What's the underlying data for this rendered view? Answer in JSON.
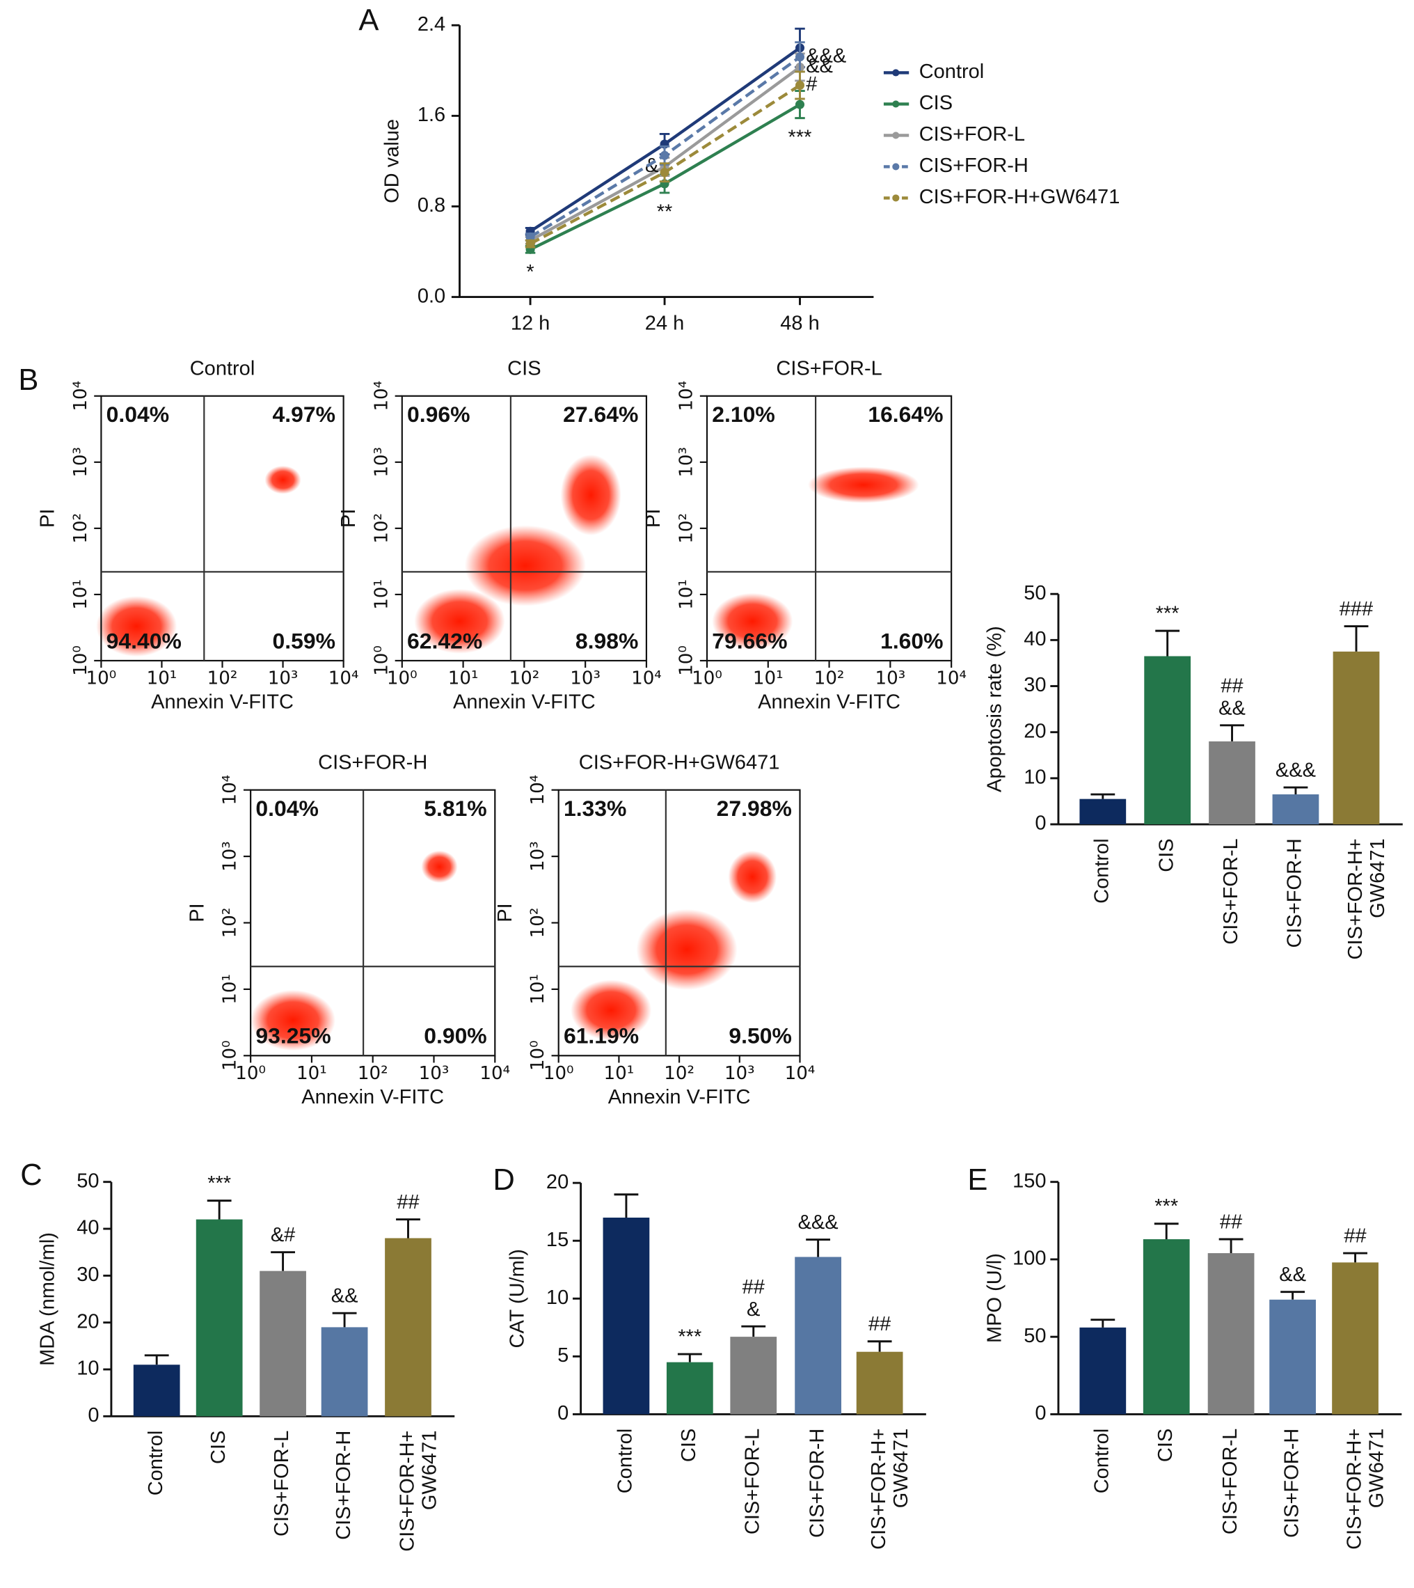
{
  "chart_data": [
    {
      "type": "line",
      "panel_label": "A",
      "ylabel": "OD value",
      "categories": [
        "12 h",
        "24 h",
        "48 h"
      ],
      "ylim": [
        0,
        2.4
      ],
      "yticks": [
        {
          "value": 0,
          "label": "0.0"
        },
        0.8,
        1.6,
        2.4
      ],
      "series": [
        {
          "name": "Control",
          "color": "#1f3a78",
          "dashed": false,
          "values": [
            0.58,
            1.35,
            2.2
          ],
          "errors": [
            0.03,
            0.09,
            0.17
          ],
          "significance": [
            null,
            null,
            null
          ]
        },
        {
          "name": "CIS",
          "color": "#2e8050",
          "dashed": false,
          "values": [
            0.42,
            1.0,
            1.7
          ],
          "errors": [
            0.03,
            0.08,
            0.12
          ],
          "significance": [
            "*",
            "**",
            "***"
          ]
        },
        {
          "name": "CIS+FOR-L",
          "color": "#9a9a9a",
          "dashed": false,
          "values": [
            0.5,
            1.15,
            2.03
          ],
          "errors": [
            0.03,
            0.08,
            0.12
          ],
          "significance": [
            null,
            "&",
            "&&"
          ]
        },
        {
          "name": "CIS+FOR-H",
          "color": "#5a79a8",
          "dashed": true,
          "values": [
            0.53,
            1.25,
            2.12
          ],
          "errors": [
            0.03,
            0.08,
            0.13
          ],
          "significance": [
            null,
            null,
            "&&&"
          ]
        },
        {
          "name": "CIS+FOR-H+GW6471",
          "color": "#9c8a3a",
          "dashed": true,
          "values": [
            0.47,
            1.1,
            1.87
          ],
          "errors": [
            0.03,
            0.08,
            0.12
          ],
          "significance": [
            null,
            null,
            "#"
          ]
        }
      ]
    },
    {
      "type": "flow",
      "panel_label": "B",
      "title": "Control",
      "xlabel": "Annexin V-FITC",
      "ylabel": "PI",
      "log_scale": true,
      "xlim": [
        1,
        10000
      ],
      "ylim": [
        1,
        10000
      ],
      "xticks": [
        {
          "value": 1,
          "label": "10⁰"
        },
        {
          "value": 10,
          "label": "10¹"
        },
        {
          "value": 100,
          "label": "10²"
        },
        {
          "value": 1000,
          "label": "10³"
        },
        {
          "value": 10000,
          "label": "10⁴"
        }
      ],
      "yticks": [
        {
          "value": 1,
          "label": "10⁰"
        },
        {
          "value": 10,
          "label": "10¹"
        },
        {
          "value": 100,
          "label": "10²"
        },
        {
          "value": 1000,
          "label": "10³"
        },
        {
          "value": 10000,
          "label": "10⁴"
        }
      ],
      "gate_x": 50,
      "gate_y": 22,
      "values": [
        0.04,
        4.97,
        94.4,
        0.59
      ],
      "value_labels": [
        "0.04%",
        "4.97%",
        "94.40%",
        "0.59%"
      ]
    },
    {
      "type": "flow",
      "title": "CIS",
      "xlabel": "Annexin V-FITC",
      "ylabel": "PI",
      "log_scale": true,
      "xlim": [
        1,
        10000
      ],
      "ylim": [
        1,
        10000
      ],
      "xticks": [
        {
          "value": 1,
          "label": "10⁰"
        },
        {
          "value": 10,
          "label": "10¹"
        },
        {
          "value": 100,
          "label": "10²"
        },
        {
          "value": 1000,
          "label": "10³"
        },
        {
          "value": 10000,
          "label": "10⁴"
        }
      ],
      "yticks": [
        {
          "value": 1,
          "label": "10⁰"
        },
        {
          "value": 10,
          "label": "10¹"
        },
        {
          "value": 100,
          "label": "10²"
        },
        {
          "value": 1000,
          "label": "10³"
        },
        {
          "value": 10000,
          "label": "10⁴"
        }
      ],
      "gate_x": 60,
      "gate_y": 22,
      "values": [
        0.96,
        27.64,
        62.42,
        8.98
      ],
      "value_labels": [
        "0.96%",
        "27.64%",
        "62.42%",
        "8.98%"
      ]
    },
    {
      "type": "flow",
      "title": "CIS+FOR-L",
      "xlabel": "Annexin V-FITC",
      "ylabel": "PI",
      "log_scale": true,
      "xlim": [
        1,
        10000
      ],
      "ylim": [
        1,
        10000
      ],
      "xticks": [
        {
          "value": 1,
          "label": "10⁰"
        },
        {
          "value": 10,
          "label": "10¹"
        },
        {
          "value": 100,
          "label": "10²"
        },
        {
          "value": 1000,
          "label": "10³"
        },
        {
          "value": 10000,
          "label": "10⁴"
        }
      ],
      "yticks": [
        {
          "value": 1,
          "label": "10⁰"
        },
        {
          "value": 10,
          "label": "10¹"
        },
        {
          "value": 100,
          "label": "10²"
        },
        {
          "value": 1000,
          "label": "10³"
        },
        {
          "value": 10000,
          "label": "10⁴"
        }
      ],
      "gate_x": 60,
      "gate_y": 22,
      "values": [
        2.1,
        16.64,
        79.66,
        1.6
      ],
      "value_labels": [
        "2.10%",
        "16.64%",
        "79.66%",
        "1.60%"
      ]
    },
    {
      "type": "flow",
      "title": "CIS+FOR-H",
      "xlabel": "Annexin V-FITC",
      "ylabel": "PI",
      "log_scale": true,
      "xlim": [
        1,
        10000
      ],
      "ylim": [
        1,
        10000
      ],
      "xticks": [
        {
          "value": 1,
          "label": "10⁰"
        },
        {
          "value": 10,
          "label": "10¹"
        },
        {
          "value": 100,
          "label": "10²"
        },
        {
          "value": 1000,
          "label": "10³"
        },
        {
          "value": 10000,
          "label": "10⁴"
        }
      ],
      "yticks": [
        {
          "value": 1,
          "label": "10⁰"
        },
        {
          "value": 10,
          "label": "10¹"
        },
        {
          "value": 100,
          "label": "10²"
        },
        {
          "value": 1000,
          "label": "10³"
        },
        {
          "value": 10000,
          "label": "10⁴"
        }
      ],
      "gate_x": 70,
      "gate_y": 22,
      "values": [
        0.04,
        5.81,
        93.25,
        0.9
      ],
      "value_labels": [
        "0.04%",
        "5.81%",
        "93.25%",
        "0.90%"
      ]
    },
    {
      "type": "flow",
      "title": "CIS+FOR-H+GW6471",
      "xlabel": "Annexin V-FITC",
      "ylabel": "PI",
      "log_scale": true,
      "xlim": [
        1,
        10000
      ],
      "ylim": [
        1,
        10000
      ],
      "xticks": [
        {
          "value": 1,
          "label": "10⁰"
        },
        {
          "value": 10,
          "label": "10¹"
        },
        {
          "value": 100,
          "label": "10²"
        },
        {
          "value": 1000,
          "label": "10³"
        },
        {
          "value": 10000,
          "label": "10⁴"
        }
      ],
      "yticks": [
        {
          "value": 1,
          "label": "10⁰"
        },
        {
          "value": 10,
          "label": "10¹"
        },
        {
          "value": 100,
          "label": "10²"
        },
        {
          "value": 1000,
          "label": "10³"
        },
        {
          "value": 10000,
          "label": "10⁴"
        }
      ],
      "gate_x": 60,
      "gate_y": 22,
      "values": [
        1.33,
        27.98,
        61.19,
        9.5
      ],
      "value_labels": [
        "1.33%",
        "27.98%",
        "61.19%",
        "9.50%"
      ]
    },
    {
      "type": "bar",
      "ylabel": "Apoptosis rate (%)",
      "categories": [
        "Control",
        "CIS",
        "CIS+FOR-L",
        "CIS+FOR-H",
        "CIS+FOR-H+\nGW6471"
      ],
      "colors": [
        "#0d2a5e",
        "#23764a",
        "#808080",
        "#5677a3",
        "#8b7a35"
      ],
      "values": [
        5.5,
        36.5,
        18,
        6.5,
        37.5
      ],
      "errors": [
        1,
        5.5,
        3.5,
        1.5,
        5.5
      ],
      "significance": [
        null,
        "***",
        "##\n&&",
        "&&&",
        "###"
      ],
      "ylim": [
        0,
        50
      ],
      "yticks": [
        0,
        10,
        20,
        30,
        40,
        50
      ]
    },
    {
      "type": "bar",
      "panel_label": "C",
      "ylabel": "MDA (nmol/ml)",
      "categories": [
        "Control",
        "CIS",
        "CIS+FOR-L",
        "CIS+FOR-H",
        "CIS+FOR-H+\nGW6471"
      ],
      "colors": [
        "#0d2a5e",
        "#23764a",
        "#808080",
        "#5677a3",
        "#8b7a35"
      ],
      "values": [
        11,
        42,
        31,
        19,
        38
      ],
      "errors": [
        2,
        4,
        4,
        3,
        4
      ],
      "significance": [
        null,
        "***",
        "&#",
        "&&",
        "##"
      ],
      "ylim": [
        0,
        50
      ],
      "yticks": [
        0,
        10,
        20,
        30,
        40,
        50
      ]
    },
    {
      "type": "bar",
      "panel_label": "D",
      "ylabel": "CAT (U/ml)",
      "categories": [
        "Control",
        "CIS",
        "CIS+FOR-L",
        "CIS+FOR-H",
        "CIS+FOR-H+\nGW6471"
      ],
      "colors": [
        "#0d2a5e",
        "#23764a",
        "#808080",
        "#5677a3",
        "#8b7a35"
      ],
      "values": [
        17,
        4.5,
        6.7,
        13.6,
        5.4
      ],
      "errors": [
        2,
        0.7,
        0.9,
        1.5,
        0.9
      ],
      "significance": [
        null,
        "***",
        "##\n&",
        "&&&",
        "##"
      ],
      "ylim": [
        0,
        20
      ],
      "yticks": [
        0,
        5,
        10,
        15,
        20
      ]
    },
    {
      "type": "bar",
      "panel_label": "E",
      "ylabel": "MPO (U/l)",
      "categories": [
        "Control",
        "CIS",
        "CIS+FOR-L",
        "CIS+FOR-H",
        "CIS+FOR-H+\nGW6471"
      ],
      "colors": [
        "#0d2a5e",
        "#23764a",
        "#808080",
        "#5677a3",
        "#8b7a35"
      ],
      "values": [
        56,
        113,
        104,
        74,
        98
      ],
      "errors": [
        5,
        10,
        9,
        5,
        6
      ],
      "significance": [
        null,
        "***",
        "##",
        "&&",
        "##"
      ],
      "ylim": [
        0,
        150
      ],
      "yticks": [
        0,
        50,
        100,
        150
      ]
    }
  ]
}
